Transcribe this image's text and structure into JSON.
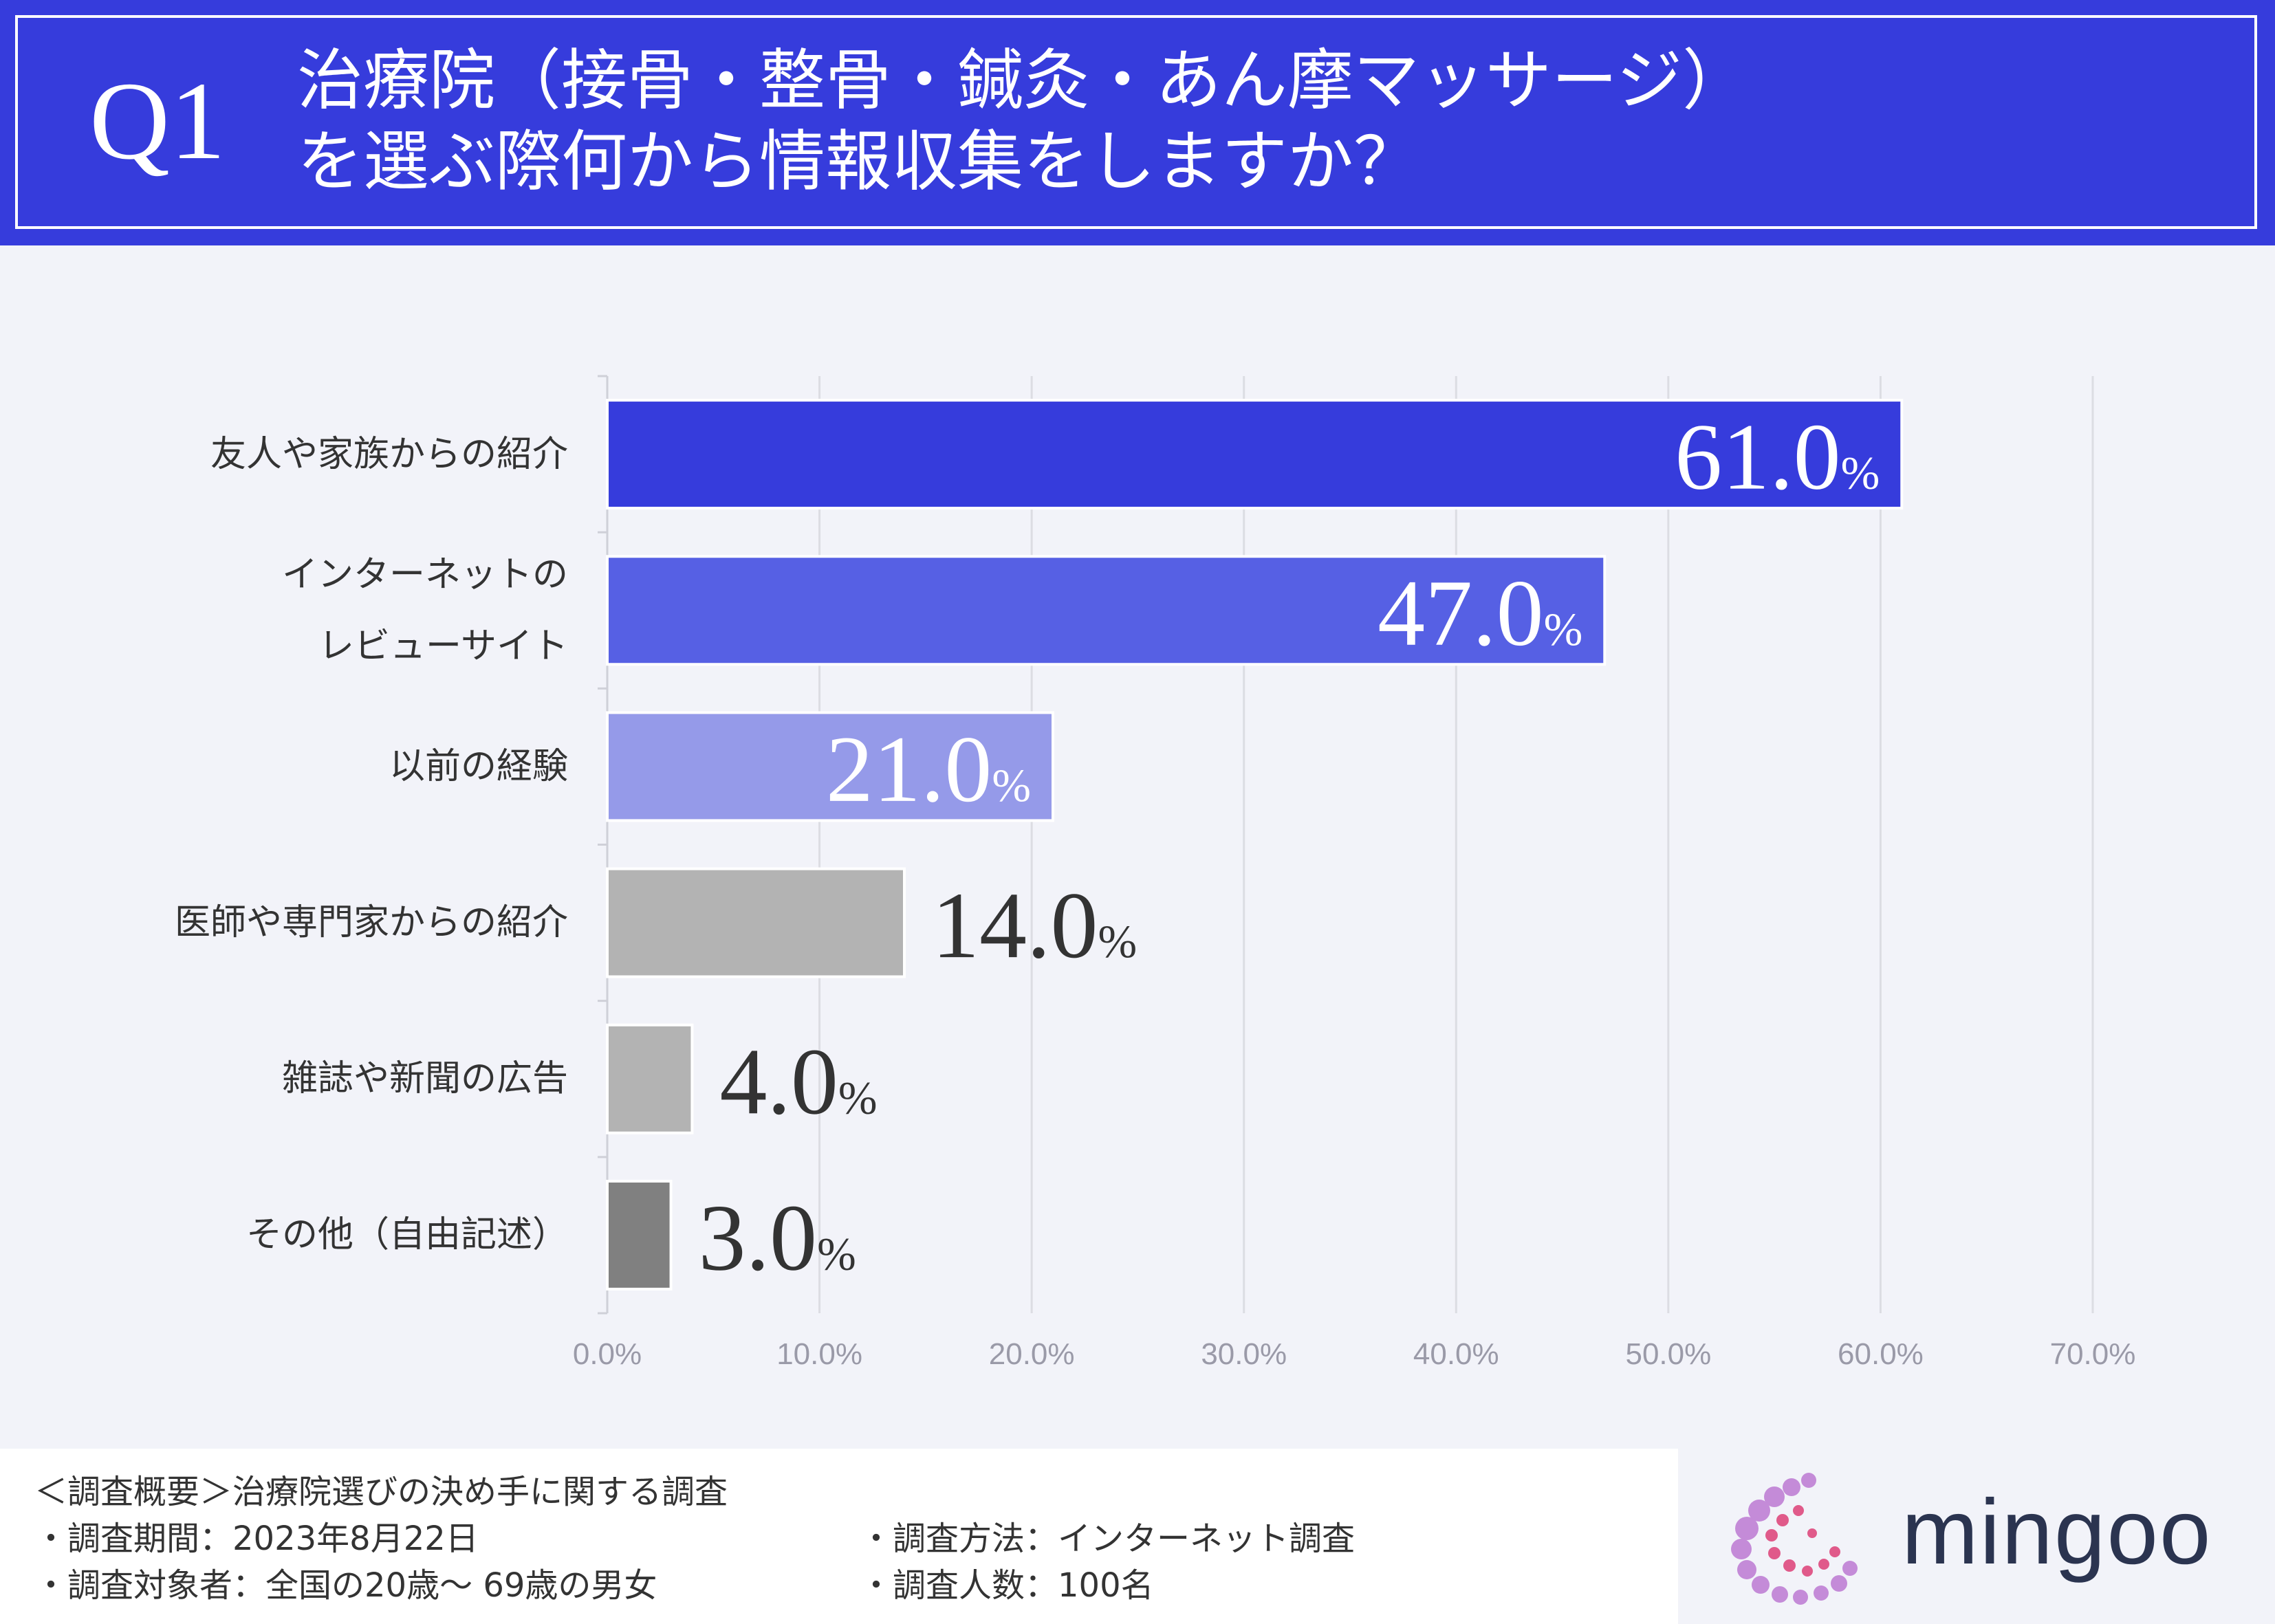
{
  "header": {
    "q_label": "Q1",
    "title_line1": "治療院（接骨・整骨・鍼灸・あん摩マッサージ）",
    "title_line2": "を選ぶ際何から情報収集をしますか？"
  },
  "chart_data": {
    "type": "bar",
    "orientation": "horizontal",
    "title": "治療院（接骨・整骨・鍼灸・あん摩マッサージ）を選ぶ際何から情報収集をしますか？",
    "categories": [
      "友人や家族からの紹介",
      "インターネットのレビューサイト",
      "以前の経験",
      "医師や専門家からの紹介",
      "雑誌や新聞の広告",
      "その他（自由記述）"
    ],
    "category_lines": [
      [
        "友人や家族からの紹介"
      ],
      [
        "インターネットの",
        "レビューサイト"
      ],
      [
        "以前の経験"
      ],
      [
        "医師や専門家からの紹介"
      ],
      [
        "雑誌や新聞の広告"
      ],
      [
        "その他（自由記述）"
      ]
    ],
    "values": [
      61.0,
      47.0,
      21.0,
      14.0,
      4.0,
      3.0
    ],
    "value_labels": [
      "61.0",
      "47.0",
      "21.0",
      "14.0",
      "4.0",
      "3.0"
    ],
    "value_suffix": "%",
    "bar_colors": [
      "#363cdc",
      "#5660e4",
      "#959ae9",
      "#b3b3b3",
      "#b3b3b3",
      "#808080"
    ],
    "label_colors": [
      "#ffffff",
      "#ffffff",
      "#ffffff",
      "#333333",
      "#333333",
      "#333333"
    ],
    "label_inside": [
      true,
      true,
      true,
      false,
      false,
      false
    ],
    "xlim": [
      0,
      70
    ],
    "xticks": [
      0,
      10,
      20,
      30,
      40,
      50,
      60,
      70
    ],
    "xtick_labels": [
      "0.0%",
      "10.0%",
      "20.0%",
      "30.0%",
      "40.0%",
      "50.0%",
      "60.0%",
      "70.0%"
    ],
    "grid": true,
    "xlabel": "",
    "ylabel": ""
  },
  "footer": {
    "overview": "＜調査概要＞治療院選びの決め手に関する調査",
    "period": "・調査期間：2023年8月22日",
    "target": "・調査対象者：全国の20歳〜 69歳の男女",
    "method": "・調査方法：インターネット調査",
    "count": "・調査人数：100名"
  },
  "logo": {
    "text": "mingoo",
    "colors": [
      "#c48bd8",
      "#e05a8a"
    ]
  }
}
